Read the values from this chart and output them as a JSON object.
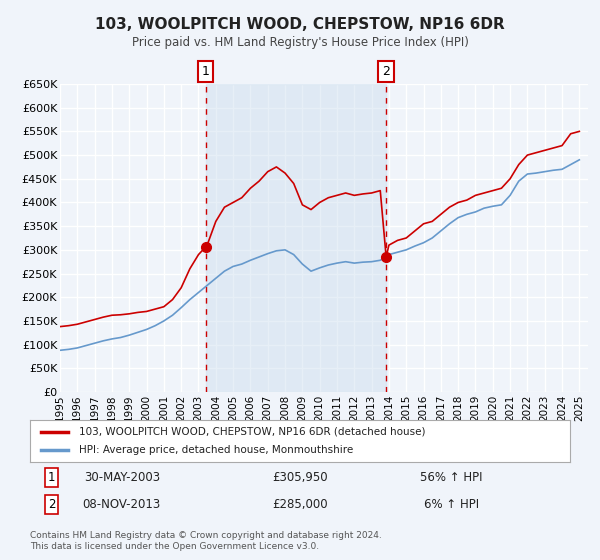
{
  "title": "103, WOOLPITCH WOOD, CHEPSTOW, NP16 6DR",
  "subtitle": "Price paid vs. HM Land Registry's House Price Index (HPI)",
  "xlabel": "",
  "ylabel": "",
  "ylim": [
    0,
    650000
  ],
  "yticks": [
    0,
    50000,
    100000,
    150000,
    200000,
    250000,
    300000,
    350000,
    400000,
    450000,
    500000,
    550000,
    600000,
    650000
  ],
  "xlim_start": 1995.0,
  "xlim_end": 2025.5,
  "xtick_years": [
    1995,
    1996,
    1997,
    1998,
    1999,
    2000,
    2001,
    2002,
    2003,
    2004,
    2005,
    2006,
    2007,
    2008,
    2009,
    2010,
    2011,
    2012,
    2013,
    2014,
    2015,
    2016,
    2017,
    2018,
    2019,
    2020,
    2021,
    2022,
    2023,
    2024,
    2025
  ],
  "bg_color": "#f0f4fa",
  "plot_bg_color": "#f0f4fa",
  "grid_color": "#ffffff",
  "red_line_color": "#cc0000",
  "blue_line_color": "#6699cc",
  "sale1_year": 2003.41,
  "sale1_price": 305950,
  "sale2_year": 2013.84,
  "sale2_price": 285000,
  "legend_label_red": "103, WOOLPITCH WOOD, CHEPSTOW, NP16 6DR (detached house)",
  "legend_label_blue": "HPI: Average price, detached house, Monmouthshire",
  "annotation1_label": "1",
  "annotation1_date": "30-MAY-2003",
  "annotation1_price": "£305,950",
  "annotation1_hpi": "56% ↑ HPI",
  "annotation2_label": "2",
  "annotation2_date": "08-NOV-2013",
  "annotation2_price": "£285,000",
  "annotation2_hpi": "6% ↑ HPI",
  "footer1": "Contains HM Land Registry data © Crown copyright and database right 2024.",
  "footer2": "This data is licensed under the Open Government Licence v3.0.",
  "shaded_region1_start": 2003.41,
  "shaded_region1_end": 2013.84,
  "red_line_data": {
    "years": [
      1995.0,
      1995.5,
      1996.0,
      1996.5,
      1997.0,
      1997.5,
      1998.0,
      1998.5,
      1999.0,
      1999.5,
      2000.0,
      2000.5,
      2001.0,
      2001.5,
      2002.0,
      2002.5,
      2003.0,
      2003.41,
      2003.5,
      2004.0,
      2004.5,
      2005.0,
      2005.5,
      2006.0,
      2006.5,
      2007.0,
      2007.5,
      2008.0,
      2008.5,
      2009.0,
      2009.5,
      2010.0,
      2010.5,
      2011.0,
      2011.5,
      2012.0,
      2012.5,
      2013.0,
      2013.5,
      2013.84,
      2014.0,
      2014.5,
      2015.0,
      2015.5,
      2016.0,
      2016.5,
      2017.0,
      2017.5,
      2018.0,
      2018.5,
      2019.0,
      2019.5,
      2020.0,
      2020.5,
      2021.0,
      2021.5,
      2022.0,
      2022.5,
      2023.0,
      2023.5,
      2024.0,
      2024.5,
      2025.0
    ],
    "prices": [
      138000,
      140000,
      143000,
      148000,
      153000,
      158000,
      162000,
      163000,
      165000,
      168000,
      170000,
      175000,
      180000,
      195000,
      220000,
      260000,
      290000,
      305950,
      310000,
      360000,
      390000,
      400000,
      410000,
      430000,
      445000,
      465000,
      475000,
      462000,
      440000,
      395000,
      385000,
      400000,
      410000,
      415000,
      420000,
      415000,
      418000,
      420000,
      425000,
      285000,
      310000,
      320000,
      325000,
      340000,
      355000,
      360000,
      375000,
      390000,
      400000,
      405000,
      415000,
      420000,
      425000,
      430000,
      450000,
      480000,
      500000,
      505000,
      510000,
      515000,
      520000,
      545000,
      550000
    ]
  },
  "blue_line_data": {
    "years": [
      1995.0,
      1995.5,
      1996.0,
      1996.5,
      1997.0,
      1997.5,
      1998.0,
      1998.5,
      1999.0,
      1999.5,
      2000.0,
      2000.5,
      2001.0,
      2001.5,
      2002.0,
      2002.5,
      2003.0,
      2003.5,
      2004.0,
      2004.5,
      2005.0,
      2005.5,
      2006.0,
      2006.5,
      2007.0,
      2007.5,
      2008.0,
      2008.5,
      2009.0,
      2009.5,
      2010.0,
      2010.5,
      2011.0,
      2011.5,
      2012.0,
      2012.5,
      2013.0,
      2013.5,
      2013.84,
      2014.0,
      2014.5,
      2015.0,
      2015.5,
      2016.0,
      2016.5,
      2017.0,
      2017.5,
      2018.0,
      2018.5,
      2019.0,
      2019.5,
      2020.0,
      2020.5,
      2021.0,
      2021.5,
      2022.0,
      2022.5,
      2023.0,
      2023.5,
      2024.0,
      2024.5,
      2025.0
    ],
    "prices": [
      88000,
      90000,
      93000,
      98000,
      103000,
      108000,
      112000,
      115000,
      120000,
      126000,
      132000,
      140000,
      150000,
      162000,
      178000,
      195000,
      210000,
      225000,
      240000,
      255000,
      265000,
      270000,
      278000,
      285000,
      292000,
      298000,
      300000,
      290000,
      270000,
      255000,
      262000,
      268000,
      272000,
      275000,
      272000,
      274000,
      275000,
      278000,
      285000,
      290000,
      295000,
      300000,
      308000,
      315000,
      325000,
      340000,
      355000,
      368000,
      375000,
      380000,
      388000,
      392000,
      395000,
      415000,
      445000,
      460000,
      462000,
      465000,
      468000,
      470000,
      480000,
      490000
    ]
  }
}
